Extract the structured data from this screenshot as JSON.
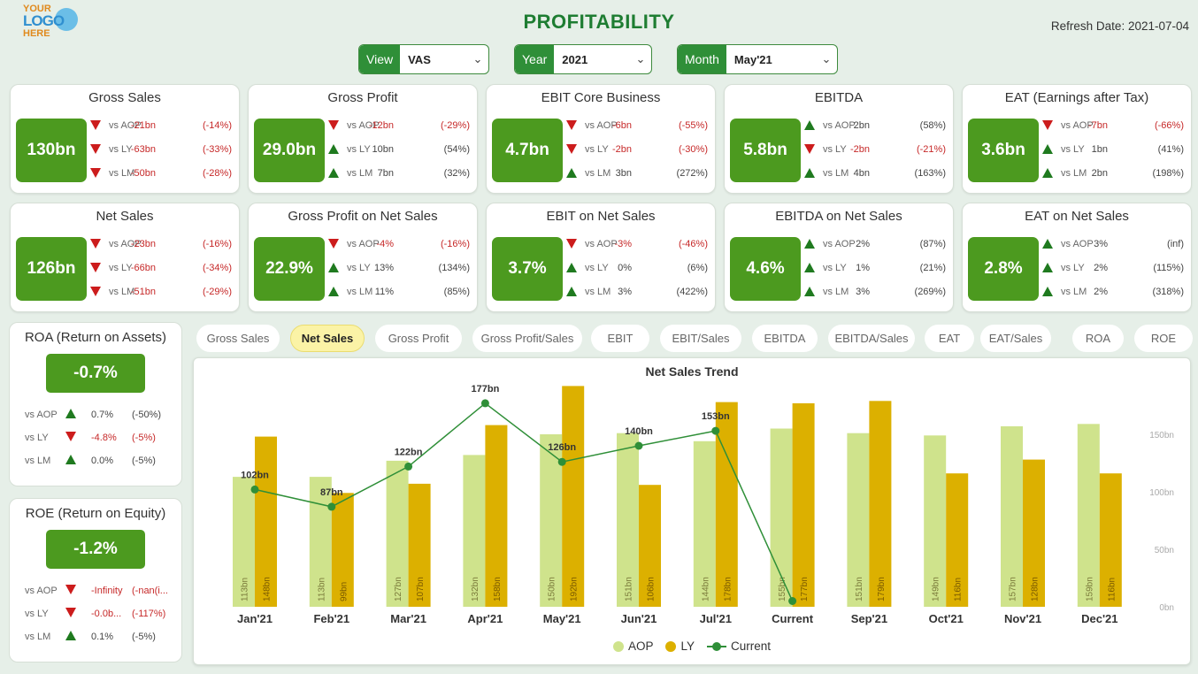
{
  "logo": {
    "line1": "YOUR",
    "line2": "LOGO",
    "line3": "HERE"
  },
  "page_title": "PROFITABILITY",
  "refresh": "Refresh Date: 2021-07-04",
  "filters": [
    {
      "label": "View",
      "value": "VAS"
    },
    {
      "label": "Year",
      "value": "2021"
    },
    {
      "label": "Month",
      "value": "May'21"
    }
  ],
  "kpi_cards": [
    {
      "title": "Gross Sales",
      "value": "130bn",
      "rows": [
        {
          "dir": "down",
          "label": "vs AOP",
          "v1": "-21bn",
          "v2": "(-14%)"
        },
        {
          "dir": "down",
          "label": "vs LY",
          "v1": "-63bn",
          "v2": "(-33%)"
        },
        {
          "dir": "down",
          "label": "vs LM",
          "v1": "-50bn",
          "v2": "(-28%)"
        }
      ]
    },
    {
      "title": "Gross Profit",
      "value": "29.0bn",
      "rows": [
        {
          "dir": "down",
          "label": "vs AOP",
          "v1": "-12bn",
          "v2": "(-29%)"
        },
        {
          "dir": "up",
          "label": "vs LY",
          "v1": "10bn",
          "v2": "(54%)"
        },
        {
          "dir": "up",
          "label": "vs LM",
          "v1": "7bn",
          "v2": "(32%)"
        }
      ]
    },
    {
      "title": "EBIT Core Business",
      "value": "4.7bn",
      "rows": [
        {
          "dir": "down",
          "label": "vs AOP",
          "v1": "-6bn",
          "v2": "(-55%)"
        },
        {
          "dir": "down",
          "label": "vs LY",
          "v1": "-2bn",
          "v2": "(-30%)"
        },
        {
          "dir": "up",
          "label": "vs LM",
          "v1": "3bn",
          "v2": "(272%)"
        }
      ]
    },
    {
      "title": "EBITDA",
      "value": "5.8bn",
      "rows": [
        {
          "dir": "up",
          "label": "vs AOP",
          "v1": "2bn",
          "v2": "(58%)"
        },
        {
          "dir": "down",
          "label": "vs LY",
          "v1": "-2bn",
          "v2": "(-21%)"
        },
        {
          "dir": "up",
          "label": "vs LM",
          "v1": "4bn",
          "v2": "(163%)"
        }
      ]
    },
    {
      "title": "EAT (Earnings after Tax)",
      "value": "3.6bn",
      "rows": [
        {
          "dir": "down",
          "label": "vs AOP",
          "v1": "-7bn",
          "v2": "(-66%)"
        },
        {
          "dir": "up",
          "label": "vs LY",
          "v1": "1bn",
          "v2": "(41%)"
        },
        {
          "dir": "up",
          "label": "vs LM",
          "v1": "2bn",
          "v2": "(198%)"
        }
      ]
    },
    {
      "title": "Net Sales",
      "value": "126bn",
      "rows": [
        {
          "dir": "down",
          "label": "vs AOP",
          "v1": "-23bn",
          "v2": "(-16%)"
        },
        {
          "dir": "down",
          "label": "vs LY",
          "v1": "-66bn",
          "v2": "(-34%)"
        },
        {
          "dir": "down",
          "label": "vs LM",
          "v1": "-51bn",
          "v2": "(-29%)"
        }
      ]
    },
    {
      "title": "Gross Profit on Net Sales",
      "value": "22.9%",
      "rows": [
        {
          "dir": "down",
          "label": "vs AOP",
          "v1": "-4%",
          "v2": "(-16%)"
        },
        {
          "dir": "up",
          "label": "vs LY",
          "v1": "13%",
          "v2": "(134%)"
        },
        {
          "dir": "up",
          "label": "vs LM",
          "v1": "11%",
          "v2": "(85%)"
        }
      ]
    },
    {
      "title": "EBIT on Net Sales",
      "value": "3.7%",
      "rows": [
        {
          "dir": "down",
          "label": "vs AOP",
          "v1": "-3%",
          "v2": "(-46%)"
        },
        {
          "dir": "up",
          "label": "vs LY",
          "v1": "0%",
          "v2": "(6%)"
        },
        {
          "dir": "up",
          "label": "vs LM",
          "v1": "3%",
          "v2": "(422%)"
        }
      ]
    },
    {
      "title": "EBITDA on Net Sales",
      "value": "4.6%",
      "rows": [
        {
          "dir": "up",
          "label": "vs AOP",
          "v1": "2%",
          "v2": "(87%)"
        },
        {
          "dir": "up",
          "label": "vs LY",
          "v1": "1%",
          "v2": "(21%)"
        },
        {
          "dir": "up",
          "label": "vs LM",
          "v1": "3%",
          "v2": "(269%)"
        }
      ]
    },
    {
      "title": "EAT on Net Sales",
      "value": "2.8%",
      "rows": [
        {
          "dir": "up",
          "label": "vs AOP",
          "v1": "3%",
          "v2": "(inf)"
        },
        {
          "dir": "up",
          "label": "vs LY",
          "v1": "2%",
          "v2": "(115%)"
        },
        {
          "dir": "up",
          "label": "vs LM",
          "v1": "2%",
          "v2": "(318%)"
        }
      ]
    }
  ],
  "side_cards": [
    {
      "title": "ROA (Return on Assets)",
      "value": "-0.7%",
      "rows": [
        {
          "dir": "up",
          "label": "vs AOP",
          "v1": "0.7%",
          "v2": "(-50%)"
        },
        {
          "dir": "down",
          "label": "vs LY",
          "v1": "-4.8%",
          "v2": "(-5%)"
        },
        {
          "dir": "up",
          "label": "vs LM",
          "v1": "0.0%",
          "v2": "(-5%)"
        }
      ]
    },
    {
      "title": "ROE (Return on Equity)",
      "value": "-1.2%",
      "rows": [
        {
          "dir": "down",
          "label": "vs AOP",
          "v1": "-Infinity",
          "v2": "(-nan(i..."
        },
        {
          "dir": "down",
          "label": "vs LY",
          "v1": "-0.0b...",
          "v2": "(-117%)"
        },
        {
          "dir": "up",
          "label": "vs LM",
          "v1": "0.1%",
          "v2": "(-5%)"
        }
      ]
    }
  ],
  "tabs": [
    "Gross Sales",
    "Net Sales",
    "Gross Profit",
    "Gross Profit/Sales",
    "EBIT",
    "EBIT/Sales",
    "EBITDA",
    "EBITDA/Sales",
    "EAT",
    "EAT/Sales",
    "ROA",
    "ROE"
  ],
  "active_tab": "Net Sales",
  "colors": {
    "aop": "#cfe38c",
    "ly": "#dcb000",
    "current": "#2f8f38",
    "kpi": "#4c9a1f",
    "down": "#cc1c1c",
    "up": "#1f7a1f"
  },
  "chart_data": {
    "type": "bar",
    "title": "Net Sales Trend",
    "categories": [
      "Jan'21",
      "Feb'21",
      "Mar'21",
      "Apr'21",
      "May'21",
      "Jun'21",
      "Jul'21",
      "Current",
      "Sep'21",
      "Oct'21",
      "Nov'21",
      "Dec'21"
    ],
    "y_ticks": [
      "0bn",
      "50bn",
      "100bn",
      "150bn"
    ],
    "ylim": [
      0,
      200
    ],
    "series": [
      {
        "name": "AOP",
        "type": "bar",
        "values": [
          113,
          113,
          127,
          132,
          150,
          151,
          144,
          155,
          151,
          149,
          157,
          159
        ],
        "labels": [
          "113bn",
          "113bn",
          "127bn",
          "132bn",
          "150bn",
          "151bn",
          "144bn",
          "155bn",
          "151bn",
          "149bn",
          "157bn",
          "159bn"
        ]
      },
      {
        "name": "LY",
        "type": "bar",
        "values": [
          148,
          99,
          107,
          158,
          192,
          106,
          178,
          177,
          179,
          116,
          128,
          116
        ],
        "labels": [
          "148bn",
          "99bn",
          "107bn",
          "158bn",
          "192bn",
          "106bn",
          "178bn",
          "177bn",
          "179bn",
          "116bn",
          "128bn",
          "116bn"
        ]
      },
      {
        "name": "Current",
        "type": "line",
        "values": [
          102,
          87,
          122,
          177,
          126,
          140,
          153,
          5,
          null,
          null,
          null,
          null
        ],
        "labels": [
          "102bn",
          "87bn",
          "122bn",
          "177bn",
          "126bn",
          "140bn",
          "153bn",
          "",
          "",
          "",
          "",
          ""
        ]
      }
    ],
    "legend_position": "bottom"
  }
}
